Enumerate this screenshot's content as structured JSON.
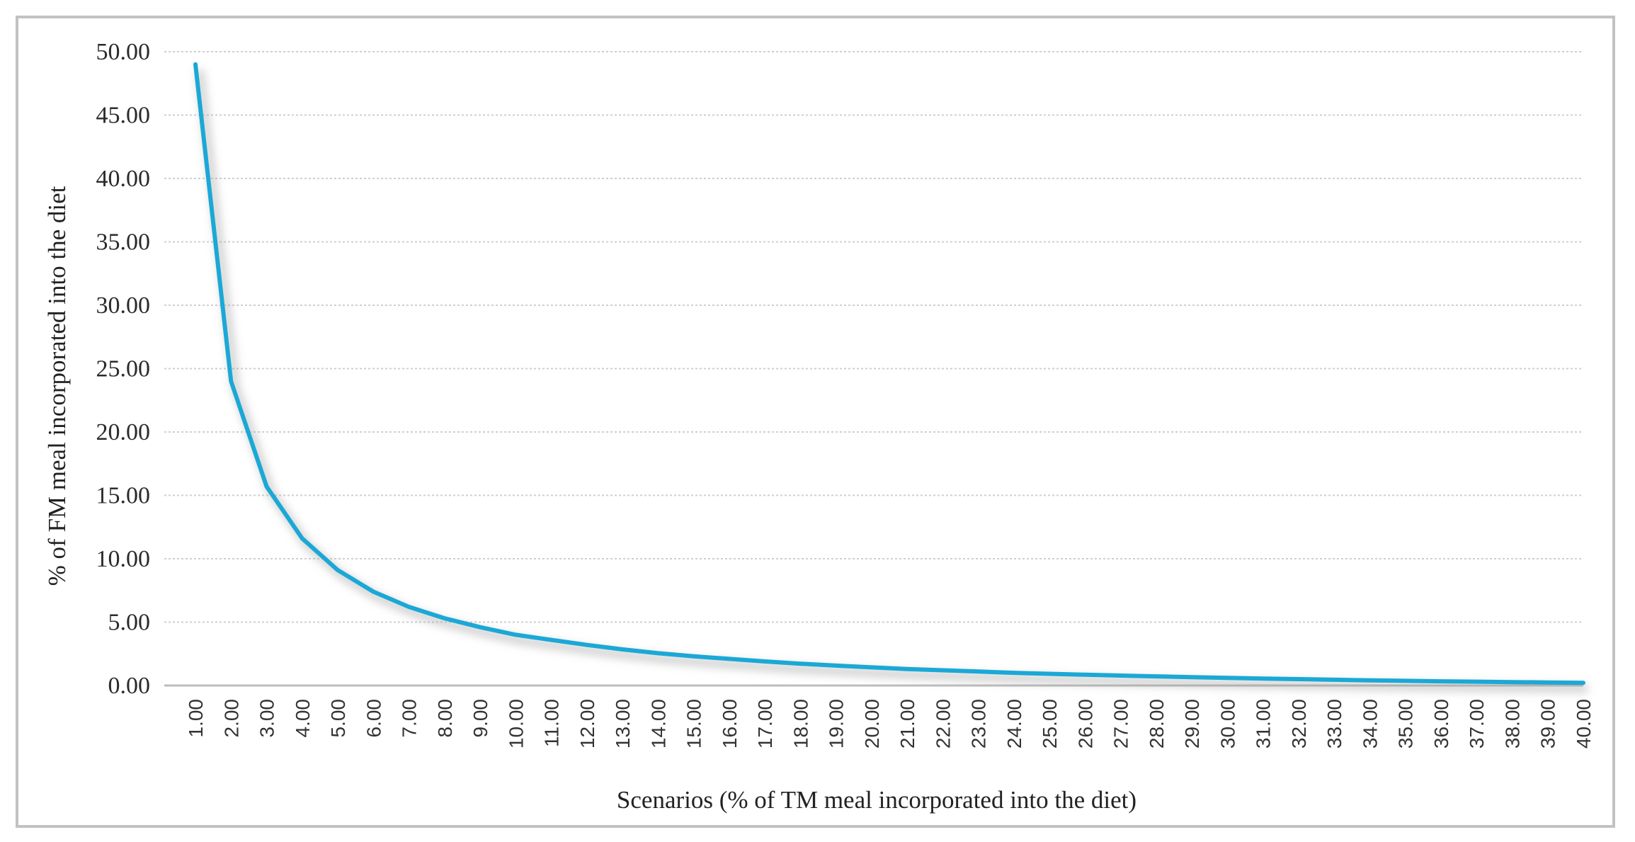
{
  "chart_data": {
    "type": "line",
    "title": "",
    "xlabel": "Scenarios (% of TM meal incorporated into the diet)",
    "ylabel": "% of FM meal incorporated into the diet",
    "ylim": [
      0,
      50
    ],
    "yticks": [
      "0.00",
      "5.00",
      "10.00",
      "15.00",
      "20.00",
      "25.00",
      "30.00",
      "35.00",
      "40.00",
      "45.00",
      "50.00"
    ],
    "categories": [
      "1.00",
      "2.00",
      "3.00",
      "4.00",
      "5.00",
      "6.00",
      "7.00",
      "8.00",
      "9.00",
      "10.00",
      "11.00",
      "12.00",
      "13.00",
      "14.00",
      "15.00",
      "16.00",
      "17.00",
      "18.00",
      "19.00",
      "20.00",
      "21.00",
      "22.00",
      "23.00",
      "24.00",
      "25.00",
      "26.00",
      "27.00",
      "28.00",
      "29.00",
      "30.00",
      "31.00",
      "32.00",
      "33.00",
      "34.00",
      "35.00",
      "36.00",
      "37.00",
      "38.00",
      "39.00",
      "40.00"
    ],
    "series": [
      {
        "name": "% of FM meal incorporated into the diet",
        "color": "#1ba8d6",
        "values": [
          49.0,
          24.0,
          15.7,
          11.6,
          9.1,
          7.4,
          6.2,
          5.3,
          4.6,
          4.0,
          3.6,
          3.2,
          2.85,
          2.55,
          2.3,
          2.1,
          1.9,
          1.72,
          1.57,
          1.43,
          1.3,
          1.2,
          1.1,
          1.0,
          0.92,
          0.85,
          0.78,
          0.72,
          0.66,
          0.6,
          0.55,
          0.5,
          0.45,
          0.41,
          0.37,
          0.33,
          0.3,
          0.27,
          0.24,
          0.21
        ]
      }
    ],
    "grid": true,
    "legend": "none"
  }
}
